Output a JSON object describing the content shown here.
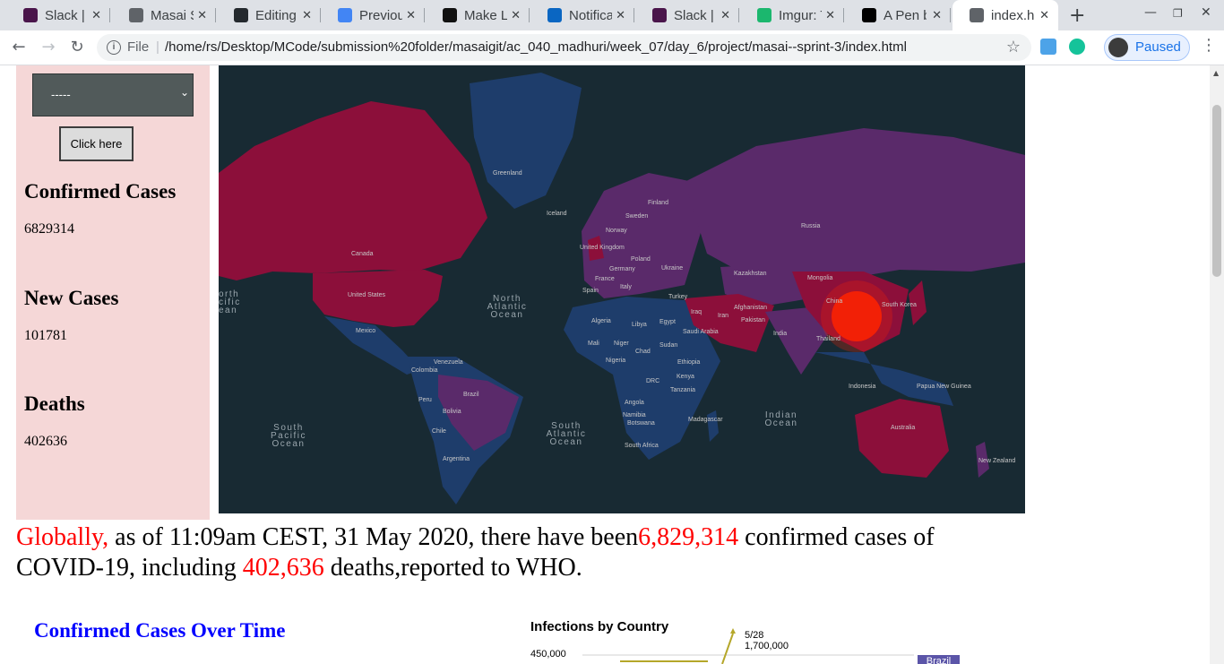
{
  "browser": {
    "tabs": [
      {
        "title": "Slack | A",
        "icon": "slack-icon",
        "color": "#4a154b"
      },
      {
        "title": "Masai Sc",
        "icon": "globe-icon",
        "color": "#5f6368"
      },
      {
        "title": "Editing",
        "icon": "github-icon",
        "color": "#24292e"
      },
      {
        "title": "Previou",
        "icon": "window-icon",
        "color": "#4285f4"
      },
      {
        "title": "Make Le",
        "icon": "hashnode-icon",
        "color": "#111111"
      },
      {
        "title": "Notifica",
        "icon": "linkedin-icon",
        "color": "#0a66c2"
      },
      {
        "title": "Slack | T",
        "icon": "slack-icon",
        "color": "#4a154b"
      },
      {
        "title": "Imgur: T",
        "icon": "imgur-icon",
        "color": "#1bb76e"
      },
      {
        "title": "A Pen b",
        "icon": "codepen-icon",
        "color": "#000000"
      },
      {
        "title": "index.h",
        "icon": "globe-icon",
        "color": "#5f6368",
        "active": true
      }
    ],
    "address": {
      "scheme_label": "File",
      "url": "/home/rs/Desktop/MCode/submission%20folder/masaigit/ac_040_madhuri/week_07/day_6/project/masai--sprint-3/index.html"
    },
    "profile_label": "Paused"
  },
  "sidebar": {
    "select_value": "-----",
    "button_label": "Click here",
    "stats": [
      {
        "label": "Confirmed Cases",
        "value": "6829314"
      },
      {
        "label": "New Cases",
        "value": "101781"
      },
      {
        "label": "Deaths",
        "value": "402636"
      }
    ]
  },
  "map": {
    "labels": {
      "greenland": "Greenland",
      "iceland": "Iceland",
      "finland": "Finland",
      "sweden": "Sweden",
      "norway": "Norway",
      "russia": "Russia",
      "uk": "United Kingdom",
      "poland": "Poland",
      "germany": "Germany",
      "ukraine": "Ukraine",
      "france": "France",
      "kazakhstan": "Kazakhstan",
      "mongolia": "Mongolia",
      "spain": "Spain",
      "italy": "Italy",
      "turkey": "Turkey",
      "canada": "Canada",
      "usa": "United States",
      "iraq": "Iraq",
      "iran": "Iran",
      "afghanistan": "Afghanistan",
      "pakistan": "Pakistan",
      "china": "China",
      "skorea": "South Korea",
      "algeria": "Algeria",
      "libya": "Libya",
      "egypt": "Egypt",
      "saudi": "Saudi Arabia",
      "india": "India",
      "thailand": "Thailand",
      "mexico": "Mexico",
      "mali": "Mali",
      "niger": "Niger",
      "chad": "Chad",
      "sudan": "Sudan",
      "nigeria": "Nigeria",
      "ethiopia": "Ethiopia",
      "venezuela": "Venezuela",
      "colombia": "Colombia",
      "kenya": "Kenya",
      "drc": "DRC",
      "tanzania": "Tanzania",
      "indonesia": "Indonesia",
      "png": "Papua New Guinea",
      "peru": "Peru",
      "brazil": "Brazil",
      "bolivia": "Bolivia",
      "angola": "Angola",
      "namibia": "Namibia",
      "botswana": "Botswana",
      "madagascar": "Madagascar",
      "australia": "Australia",
      "chile": "Chile",
      "south_africa": "South Africa",
      "argentina": "Argentina",
      "nz": "New Zealand"
    },
    "oceans": {
      "n_atlantic": [
        "North",
        "Atlantic",
        "Ocean"
      ],
      "n_pacific": [
        "orth",
        "cific",
        "ean"
      ],
      "s_pacific": [
        "South",
        "Pacific",
        "Ocean"
      ],
      "s_atlantic": [
        "South",
        "Atlantic",
        "Ocean"
      ],
      "indian": [
        "Indian",
        "Ocean"
      ]
    },
    "colors": {
      "ocean": "#182a33",
      "high": "#8c0f3a",
      "mid": "#5a2a6a",
      "low": "#1e3d6b",
      "hotspot": "#ff2200"
    }
  },
  "summary": {
    "lead": "Globally,",
    "part1": " as of 11:09am CEST, 31 May 2020, there have been",
    "confirmed": "6,829,314",
    "part2": " confirmed cases of COVID-19, including ",
    "deaths": "402,636",
    "part3": " deaths,reported to WHO."
  },
  "charts": {
    "over_time_title": "Confirmed Cases Over Time",
    "infections_title": "Infections by Country",
    "infections_date": "5/28",
    "infections_value": "1,700,000",
    "infections_y_tick": "450,000",
    "infections_country": "Brazil"
  }
}
